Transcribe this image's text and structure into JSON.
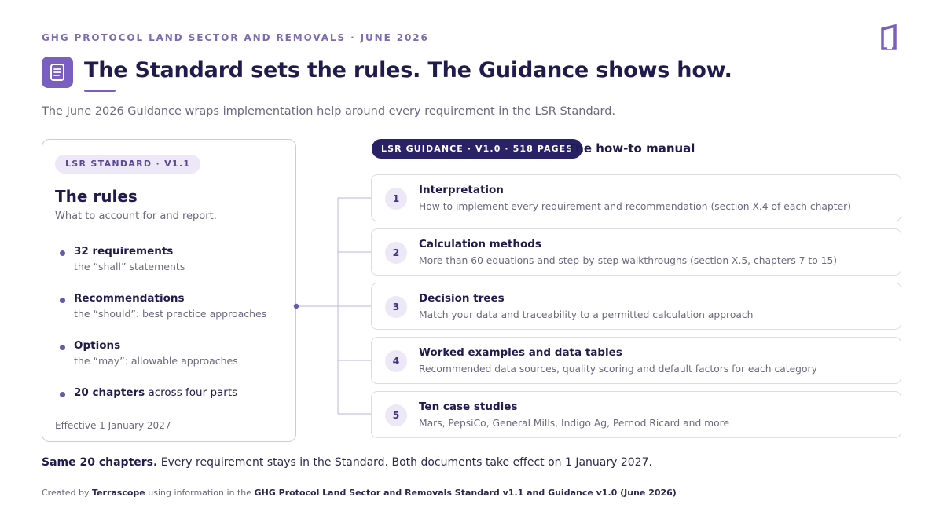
{
  "eyebrow": "GHG PROTOCOL LAND SECTOR AND REMOVALS · JUNE 2026",
  "title": "The Standard sets the rules. The Guidance shows how.",
  "subtitle": "The June 2026 Guidance wraps implementation help around every requirement in the LSR Standard.",
  "icons": {
    "title_icon": "document-icon",
    "logo": "terrascope-logo"
  },
  "colors": {
    "accent": "#7a5fc0",
    "navy": "#2a2266",
    "text": "#1f1b4d",
    "muted": "#6b6880"
  },
  "standard": {
    "pill": "LSR STANDARD · V1.1",
    "title": "The rules",
    "subtitle": "What to account for and report.",
    "items": [
      {
        "title": "32 requirements",
        "sub": "the “shall” statements"
      },
      {
        "title": "Recommendations",
        "sub": "the “should”: best practice approaches"
      },
      {
        "title": "Options",
        "sub": "the “may”: allowable approaches"
      },
      {
        "title": "20 chapters",
        "rest": " across four parts"
      }
    ],
    "footer": "Effective 1 January 2027"
  },
  "guidance": {
    "pill": "LSR GUIDANCE · V1.0 · 518 PAGES",
    "label": "The how-to manual",
    "items": [
      {
        "num": "1",
        "title": "Interpretation",
        "sub": "How to implement every requirement and recommendation (section X.4 of each chapter)"
      },
      {
        "num": "2",
        "title": "Calculation methods",
        "sub": "More than 60 equations and step-by-step walkthroughs (section X.5, chapters 7 to 15)"
      },
      {
        "num": "3",
        "title": "Decision trees",
        "sub": "Match your data and traceability to a permitted calculation approach"
      },
      {
        "num": "4",
        "title": "Worked examples and data tables",
        "sub": "Recommended data sources, quality scoring and default factors for each category"
      },
      {
        "num": "5",
        "title": "Ten case studies",
        "sub": "Mars, PepsiCo, General Mills, Indigo Ag, Pernod Ricard and more"
      }
    ]
  },
  "summary": {
    "bold": "Same 20 chapters.",
    "rest": " Every requirement stays in the Standard. Both documents take effect on 1 January 2027."
  },
  "credit": {
    "prefix": "Created by ",
    "brand": "Terrascope",
    "middle": " using information in the ",
    "source": "GHG Protocol Land Sector and Removals Standard v1.1 and Guidance v1.0 (June 2026)"
  }
}
